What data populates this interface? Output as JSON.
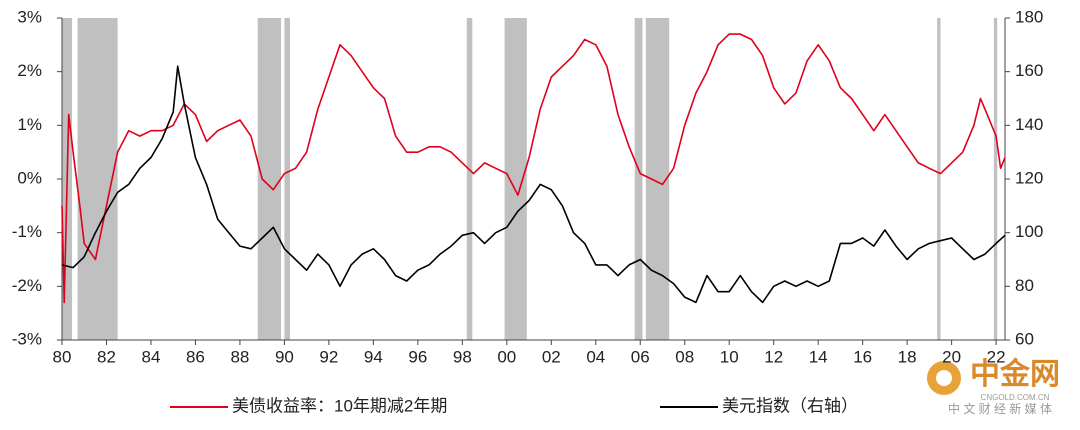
{
  "chart_data": {
    "type": "line",
    "xlim": [
      1980,
      2022.4
    ],
    "xticks": [
      {
        "value": 1980,
        "label": "80"
      },
      {
        "value": 1982,
        "label": "82"
      },
      {
        "value": 1984,
        "label": "84"
      },
      {
        "value": 1986,
        "label": "86"
      },
      {
        "value": 1988,
        "label": "88"
      },
      {
        "value": 1990,
        "label": "90"
      },
      {
        "value": 1992,
        "label": "92"
      },
      {
        "value": 1994,
        "label": "94"
      },
      {
        "value": 1996,
        "label": "96"
      },
      {
        "value": 1998,
        "label": "98"
      },
      {
        "value": 2000,
        "label": "00"
      },
      {
        "value": 2002,
        "label": "02"
      },
      {
        "value": 2004,
        "label": "04"
      },
      {
        "value": 2006,
        "label": "06"
      },
      {
        "value": 2008,
        "label": "08"
      },
      {
        "value": 2010,
        "label": "10"
      },
      {
        "value": 2012,
        "label": "12"
      },
      {
        "value": 2014,
        "label": "14"
      },
      {
        "value": 2016,
        "label": "16"
      },
      {
        "value": 2018,
        "label": "18"
      },
      {
        "value": 2020,
        "label": "20"
      },
      {
        "value": 2022,
        "label": "22"
      }
    ],
    "ylim": [
      -3,
      3
    ],
    "yticks": [
      {
        "value": 3,
        "label": "3%"
      },
      {
        "value": 2,
        "label": "2%"
      },
      {
        "value": 1,
        "label": "1%"
      },
      {
        "value": 0,
        "label": "0%"
      },
      {
        "value": -1,
        "label": "-1%"
      },
      {
        "value": -2,
        "label": "-2%"
      },
      {
        "value": -3,
        "label": "-3%"
      }
    ],
    "y2lim": [
      60,
      180
    ],
    "y2ticks": [
      180,
      160,
      140,
      120,
      100,
      80,
      60
    ],
    "shade_color": "#c0c0c0",
    "shaded_ranges": [
      [
        1980.0,
        1980.45
      ],
      [
        1980.7,
        1982.5
      ],
      [
        1988.8,
        1989.85
      ],
      [
        1990.0,
        1990.25
      ],
      [
        1998.2,
        1998.45
      ],
      [
        1999.9,
        2000.9
      ],
      [
        2005.75,
        2006.1
      ],
      [
        2006.25,
        2007.3
      ],
      [
        2019.35,
        2019.5
      ],
      [
        2021.9,
        2022.05
      ]
    ],
    "series": [
      {
        "name": "美债收益率：10年期减2年期",
        "color": "#e0001b",
        "x": [
          1980.0,
          1980.1,
          1980.3,
          1980.5,
          1980.8,
          1981.0,
          1981.5,
          1982.0,
          1982.5,
          1983.0,
          1983.5,
          1984.0,
          1984.5,
          1985.0,
          1985.5,
          1986.0,
          1986.5,
          1987.0,
          1987.5,
          1988.0,
          1988.5,
          1989.0,
          1989.5,
          1990.0,
          1990.5,
          1991.0,
          1991.5,
          1992.0,
          1992.5,
          1993.0,
          1993.5,
          1994.0,
          1994.5,
          1995.0,
          1995.5,
          1996.0,
          1996.5,
          1997.0,
          1997.5,
          1998.0,
          1998.5,
          1999.0,
          1999.5,
          2000.0,
          2000.5,
          2001.0,
          2001.5,
          2002.0,
          2002.5,
          2003.0,
          2003.5,
          2004.0,
          2004.5,
          2005.0,
          2005.5,
          2006.0,
          2006.5,
          2007.0,
          2007.5,
          2008.0,
          2008.5,
          2009.0,
          2009.5,
          2010.0,
          2010.5,
          2011.0,
          2011.5,
          2012.0,
          2012.5,
          2013.0,
          2013.5,
          2014.0,
          2014.5,
          2015.0,
          2015.5,
          2016.0,
          2016.5,
          2017.0,
          2017.5,
          2018.0,
          2018.5,
          2019.0,
          2019.5,
          2020.0,
          2020.5,
          2021.0,
          2021.3,
          2021.6,
          2022.0,
          2022.2,
          2022.4
        ],
        "values": [
          -0.5,
          -2.3,
          1.2,
          0.5,
          -0.5,
          -1.2,
          -1.5,
          -0.5,
          0.5,
          0.9,
          0.8,
          0.9,
          0.9,
          1.0,
          1.4,
          1.2,
          0.7,
          0.9,
          1.0,
          1.1,
          0.8,
          0.0,
          -0.2,
          0.1,
          0.2,
          0.5,
          1.3,
          1.9,
          2.5,
          2.3,
          2.0,
          1.7,
          1.5,
          0.8,
          0.5,
          0.5,
          0.6,
          0.6,
          0.5,
          0.3,
          0.1,
          0.3,
          0.2,
          0.1,
          -0.3,
          0.4,
          1.3,
          1.9,
          2.1,
          2.3,
          2.6,
          2.5,
          2.1,
          1.2,
          0.6,
          0.1,
          0.0,
          -0.1,
          0.2,
          1.0,
          1.6,
          2.0,
          2.5,
          2.7,
          2.7,
          2.6,
          2.3,
          1.7,
          1.4,
          1.6,
          2.2,
          2.5,
          2.2,
          1.7,
          1.5,
          1.2,
          0.9,
          1.2,
          0.9,
          0.6,
          0.3,
          0.2,
          0.1,
          0.3,
          0.5,
          1.0,
          1.5,
          1.2,
          0.8,
          0.2,
          0.4
        ]
      },
      {
        "name": "美元指数（右轴）",
        "color": "#000000",
        "axis": "y2",
        "x": [
          1980.0,
          1980.5,
          1981.0,
          1981.5,
          1982.0,
          1982.5,
          1983.0,
          1983.5,
          1984.0,
          1984.5,
          1985.0,
          1985.2,
          1985.5,
          1986.0,
          1986.5,
          1987.0,
          1987.5,
          1988.0,
          1988.5,
          1989.0,
          1989.5,
          1990.0,
          1990.5,
          1991.0,
          1991.5,
          1992.0,
          1992.5,
          1993.0,
          1993.5,
          1994.0,
          1994.5,
          1995.0,
          1995.5,
          1996.0,
          1996.5,
          1997.0,
          1997.5,
          1998.0,
          1998.5,
          1999.0,
          1999.5,
          2000.0,
          2000.5,
          2001.0,
          2001.5,
          2002.0,
          2002.5,
          2003.0,
          2003.5,
          2004.0,
          2004.5,
          2005.0,
          2005.5,
          2006.0,
          2006.5,
          2007.0,
          2007.5,
          2008.0,
          2008.5,
          2009.0,
          2009.5,
          2010.0,
          2010.5,
          2011.0,
          2011.5,
          2012.0,
          2012.5,
          2013.0,
          2013.5,
          2014.0,
          2014.5,
          2015.0,
          2015.5,
          2016.0,
          2016.5,
          2017.0,
          2017.5,
          2018.0,
          2018.5,
          2019.0,
          2019.5,
          2020.0,
          2020.5,
          2021.0,
          2021.5,
          2022.0,
          2022.4
        ],
        "values": [
          88,
          87,
          91,
          100,
          108,
          115,
          118,
          124,
          128,
          135,
          145,
          162,
          148,
          128,
          118,
          105,
          100,
          95,
          94,
          98,
          102,
          94,
          90,
          86,
          92,
          88,
          80,
          88,
          92,
          94,
          90,
          84,
          82,
          86,
          88,
          92,
          95,
          99,
          100,
          96,
          100,
          102,
          108,
          112,
          118,
          116,
          110,
          100,
          96,
          88,
          88,
          84,
          88,
          90,
          86,
          84,
          81,
          76,
          74,
          84,
          78,
          78,
          84,
          78,
          74,
          80,
          82,
          80,
          82,
          80,
          82,
          96,
          96,
          98,
          95,
          101,
          95,
          90,
          94,
          96,
          97,
          98,
          94,
          90,
          92,
          96,
          99
        ]
      }
    ],
    "watermark": {
      "title": "中金网",
      "url": "CNGOLD.COM.CN",
      "tagline": "中 文 财 经 新 媒 体"
    }
  }
}
